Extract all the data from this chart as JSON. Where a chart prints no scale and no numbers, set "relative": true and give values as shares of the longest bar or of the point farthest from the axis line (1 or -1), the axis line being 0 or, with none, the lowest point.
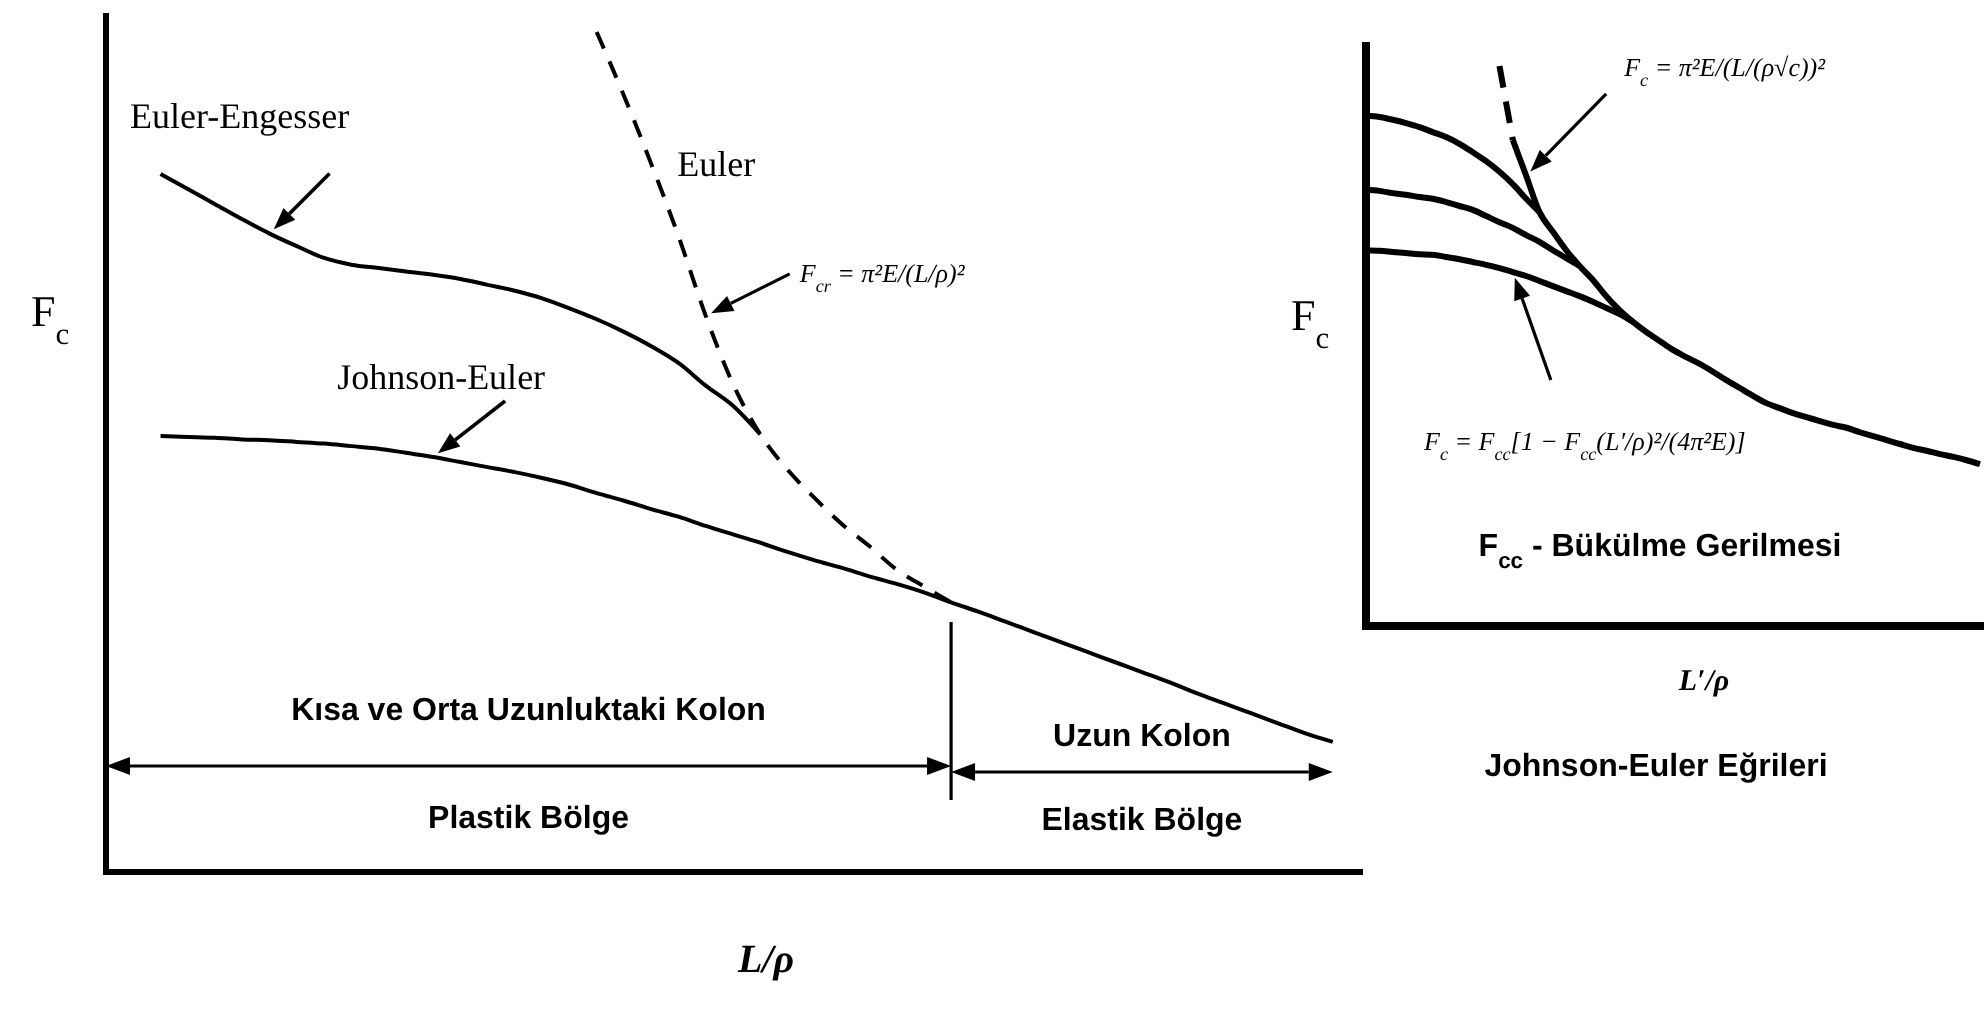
{
  "chart_data": [
    {
      "type": "line",
      "relative": true,
      "xlabel": "L/ρ",
      "ylabel": "F$_{c}$",
      "categories": [
        null,
        null,
        null,
        null,
        null,
        null,
        null,
        null,
        null,
        null,
        null,
        null,
        null,
        null,
        null,
        null,
        null,
        null,
        null,
        null,
        null,
        null,
        null,
        null,
        null,
        null,
        null,
        null,
        null,
        null,
        null,
        null,
        null,
        null,
        null,
        null,
        null,
        null,
        null,
        null,
        null,
        null,
        null,
        null,
        null,
        null,
        null
      ],
      "series": [
        {
          "name": "Euler-Engesser",
          "color": "#000000",
          "values": [
            null,
            null,
            0.831,
            0.813,
            0.795,
            0.777,
            0.76,
            0.745,
            0.731,
            0.723,
            0.719,
            0.715,
            0.711,
            0.706,
            0.699,
            0.692,
            0.683,
            0.671,
            0.658,
            0.643,
            0.626,
            0.606,
            0.579,
            0.555,
            0.521,
            null,
            null,
            null,
            null,
            null,
            null,
            null,
            null,
            null,
            null,
            null,
            null,
            null,
            null,
            null,
            null,
            null,
            null,
            null,
            null,
            null,
            null
          ]
        },
        {
          "name": "Johnson-Euler",
          "color": "#000000",
          "values": [
            null,
            null,
            0.519,
            0.518,
            0.517,
            0.515,
            0.514,
            0.512,
            0.51,
            0.507,
            0.504,
            0.499,
            0.494,
            0.488,
            0.482,
            0.476,
            0.469,
            0.461,
            0.451,
            0.442,
            0.432,
            0.423,
            0.412,
            0.402,
            0.392,
            0.381,
            0.371,
            0.362,
            0.352,
            0.343,
            0.333,
            0.321,
            0.31,
            0.298,
            0.286,
            0.274,
            0.262,
            0.25,
            0.238,
            0.226,
            0.213,
            0.201,
            0.189,
            0.177,
            0.165,
            0.155,
            null
          ]
        },
        {
          "name": "Euler",
          "color": "#000000",
          "line_style": "dashed",
          "values": [
            null,
            null,
            null,
            null,
            null,
            null,
            null,
            null,
            null,
            null,
            null,
            null,
            null,
            null,
            null,
            null,
            null,
            null,
            1,
            0.924,
            0.843,
            0.757,
            0.662,
            0.581,
            0.521,
            0.479,
            0.445,
            0.414,
            0.388,
            0.36,
            0.34,
            0.321,
            null,
            null,
            null,
            null,
            null,
            null,
            null,
            null,
            null,
            null,
            null,
            null,
            null,
            null,
            null
          ]
        }
      ],
      "annotations": [
        "F$_{cr}$ = π²E/(L/ρ)²",
        "Kısa ve Orta Uzunluktaki Kolon",
        "Plastik Bölge",
        "Uzun Kolon",
        "Elastik Bölge"
      ]
    },
    {
      "type": "line",
      "relative": true,
      "xlabel": "L′/ρ",
      "ylabel": "F$_{c}$",
      "categories": [
        null,
        null,
        null,
        null,
        null,
        null,
        null,
        null,
        null,
        null,
        null,
        null,
        null,
        null,
        null,
        null,
        null,
        null,
        null,
        null,
        null,
        null,
        null,
        null,
        null,
        null,
        null,
        null,
        null,
        null,
        null,
        null,
        null,
        null,
        null,
        null,
        null,
        null,
        null,
        null,
        null,
        null,
        null,
        null,
        null,
        null,
        null
      ],
      "series": [
        {
          "color": "#000000",
          "line_style": "dashed",
          "values": [
            null,
            null,
            null,
            null,
            null,
            null,
            null,
            null,
            null,
            null,
            1,
            0.868,
            null,
            null,
            null,
            null,
            null,
            null,
            null,
            null,
            null,
            null,
            null,
            null,
            null,
            null,
            null,
            null,
            null,
            null,
            null,
            null,
            null,
            null,
            null,
            null,
            null,
            null,
            null,
            null,
            null,
            null,
            null,
            null,
            null,
            null,
            null
          ]
        },
        {
          "color": "#000000",
          "values": [
            null,
            null,
            null,
            null,
            null,
            null,
            null,
            null,
            null,
            null,
            null,
            0.868,
            0.804,
            0.739,
            0.704,
            0.671,
            0.643,
            0.618,
            0.589,
            0.564,
            0.543,
            0.525,
            0.509,
            0.493,
            0.48,
            0.468,
            0.454,
            0.439,
            0.425,
            0.411,
            0.398,
            0.389,
            0.38,
            0.373,
            0.366,
            0.359,
            0.354,
            0.346,
            0.339,
            0.332,
            0.325,
            0.318,
            0.313,
            0.307,
            0.302,
            0.296,
            0.289
          ]
        },
        {
          "color": "#000000",
          "values": [
            0.911,
            0.909,
            0.904,
            0.898,
            0.891,
            0.882,
            0.873,
            0.861,
            0.846,
            0.83,
            0.811,
            0.789,
            0.763,
            0.739,
            null,
            null,
            null,
            null,
            null,
            null,
            null,
            null,
            null,
            null,
            null,
            null,
            null,
            null,
            null,
            null,
            null,
            null,
            null,
            null,
            null,
            null,
            null,
            null,
            null,
            null,
            null,
            null,
            null,
            null,
            null,
            null,
            null
          ]
        },
        {
          "color": "#000000",
          "values": [
            0.779,
            0.777,
            0.773,
            0.77,
            0.766,
            0.763,
            0.757,
            0.75,
            0.743,
            0.732,
            0.721,
            0.711,
            0.698,
            0.686,
            0.671,
            0.657,
            0.643,
            null,
            null,
            null,
            null,
            null,
            null,
            null,
            null,
            null,
            null,
            null,
            null,
            null,
            null,
            null,
            null,
            null,
            null,
            null,
            null,
            null,
            null,
            null,
            null,
            null,
            null,
            null,
            null,
            null,
            null
          ]
        },
        {
          "color": "#000000",
          "values": [
            0.671,
            0.67,
            0.668,
            0.666,
            0.664,
            0.663,
            0.659,
            0.655,
            0.65,
            0.645,
            0.639,
            0.632,
            0.625,
            0.616,
            0.607,
            0.598,
            0.589,
            0.579,
            0.568,
            0.557,
            0.543,
            null,
            null,
            null,
            null,
            null,
            null,
            null,
            null,
            null,
            null,
            null,
            null,
            null,
            null,
            null,
            null,
            null,
            null,
            null,
            null,
            null,
            null,
            null,
            null,
            null,
            null
          ]
        }
      ],
      "annotations": [
        "F$_{c}$ = π²E/(L/(ρ√c))²",
        "F$_{c}$ = F$_{cc}$[1 − F$_{cc}$(L′/ρ)²/(4π²E)]",
        "F$_{cc}$ - Bükülme Gerilmesi",
        "Johnson-Euler Eğrileri"
      ]
    }
  ]
}
